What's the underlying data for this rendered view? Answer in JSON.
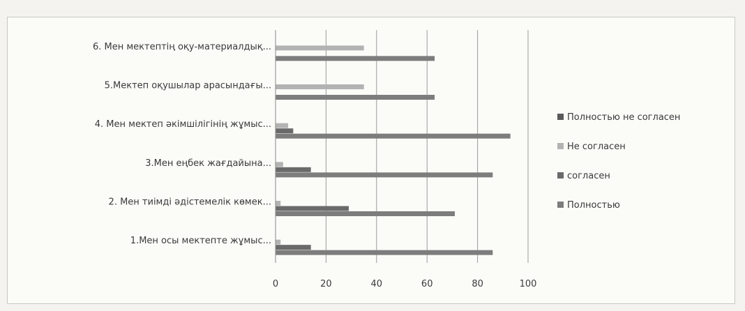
{
  "chart_data": {
    "type": "bar",
    "orientation": "horizontal",
    "title": "",
    "xlabel": "",
    "ylabel": "",
    "xlim": [
      0,
      100
    ],
    "xticks": [
      "0",
      "20",
      "40",
      "60",
      "80",
      "100"
    ],
    "grid": true,
    "legend_position": "right",
    "categories": [
      "1.Мен осы мектепте жұмыс...",
      "2. Мен тиімді әдістемелік көмек...",
      "3.Мен еңбек жағдайына...",
      "4. Мен мектеп әкімшілігінің жұмыс...",
      "5.Мектеп оқушылар арасындағы...",
      "6. Мен мектептің оқу-материалдық..."
    ],
    "series": [
      {
        "name": "Полностью",
        "color": "#7d7d7d",
        "values": [
          86,
          71,
          86,
          93,
          63,
          63
        ]
      },
      {
        "name": "согласен",
        "color": "#6a6a6a",
        "values": [
          14,
          29,
          14,
          7,
          0,
          0
        ]
      },
      {
        "name": "Не согласен",
        "color": "#b3b3b3",
        "values": [
          2,
          2,
          3,
          5,
          35,
          35
        ]
      },
      {
        "name": "Полностью не согласен",
        "color": "#5a5a5a",
        "values": [
          0,
          0,
          0,
          0,
          0,
          0
        ]
      }
    ],
    "legend_order": [
      "Полностью не согласен",
      "Не согласен",
      "согласен",
      "Полностью"
    ]
  }
}
